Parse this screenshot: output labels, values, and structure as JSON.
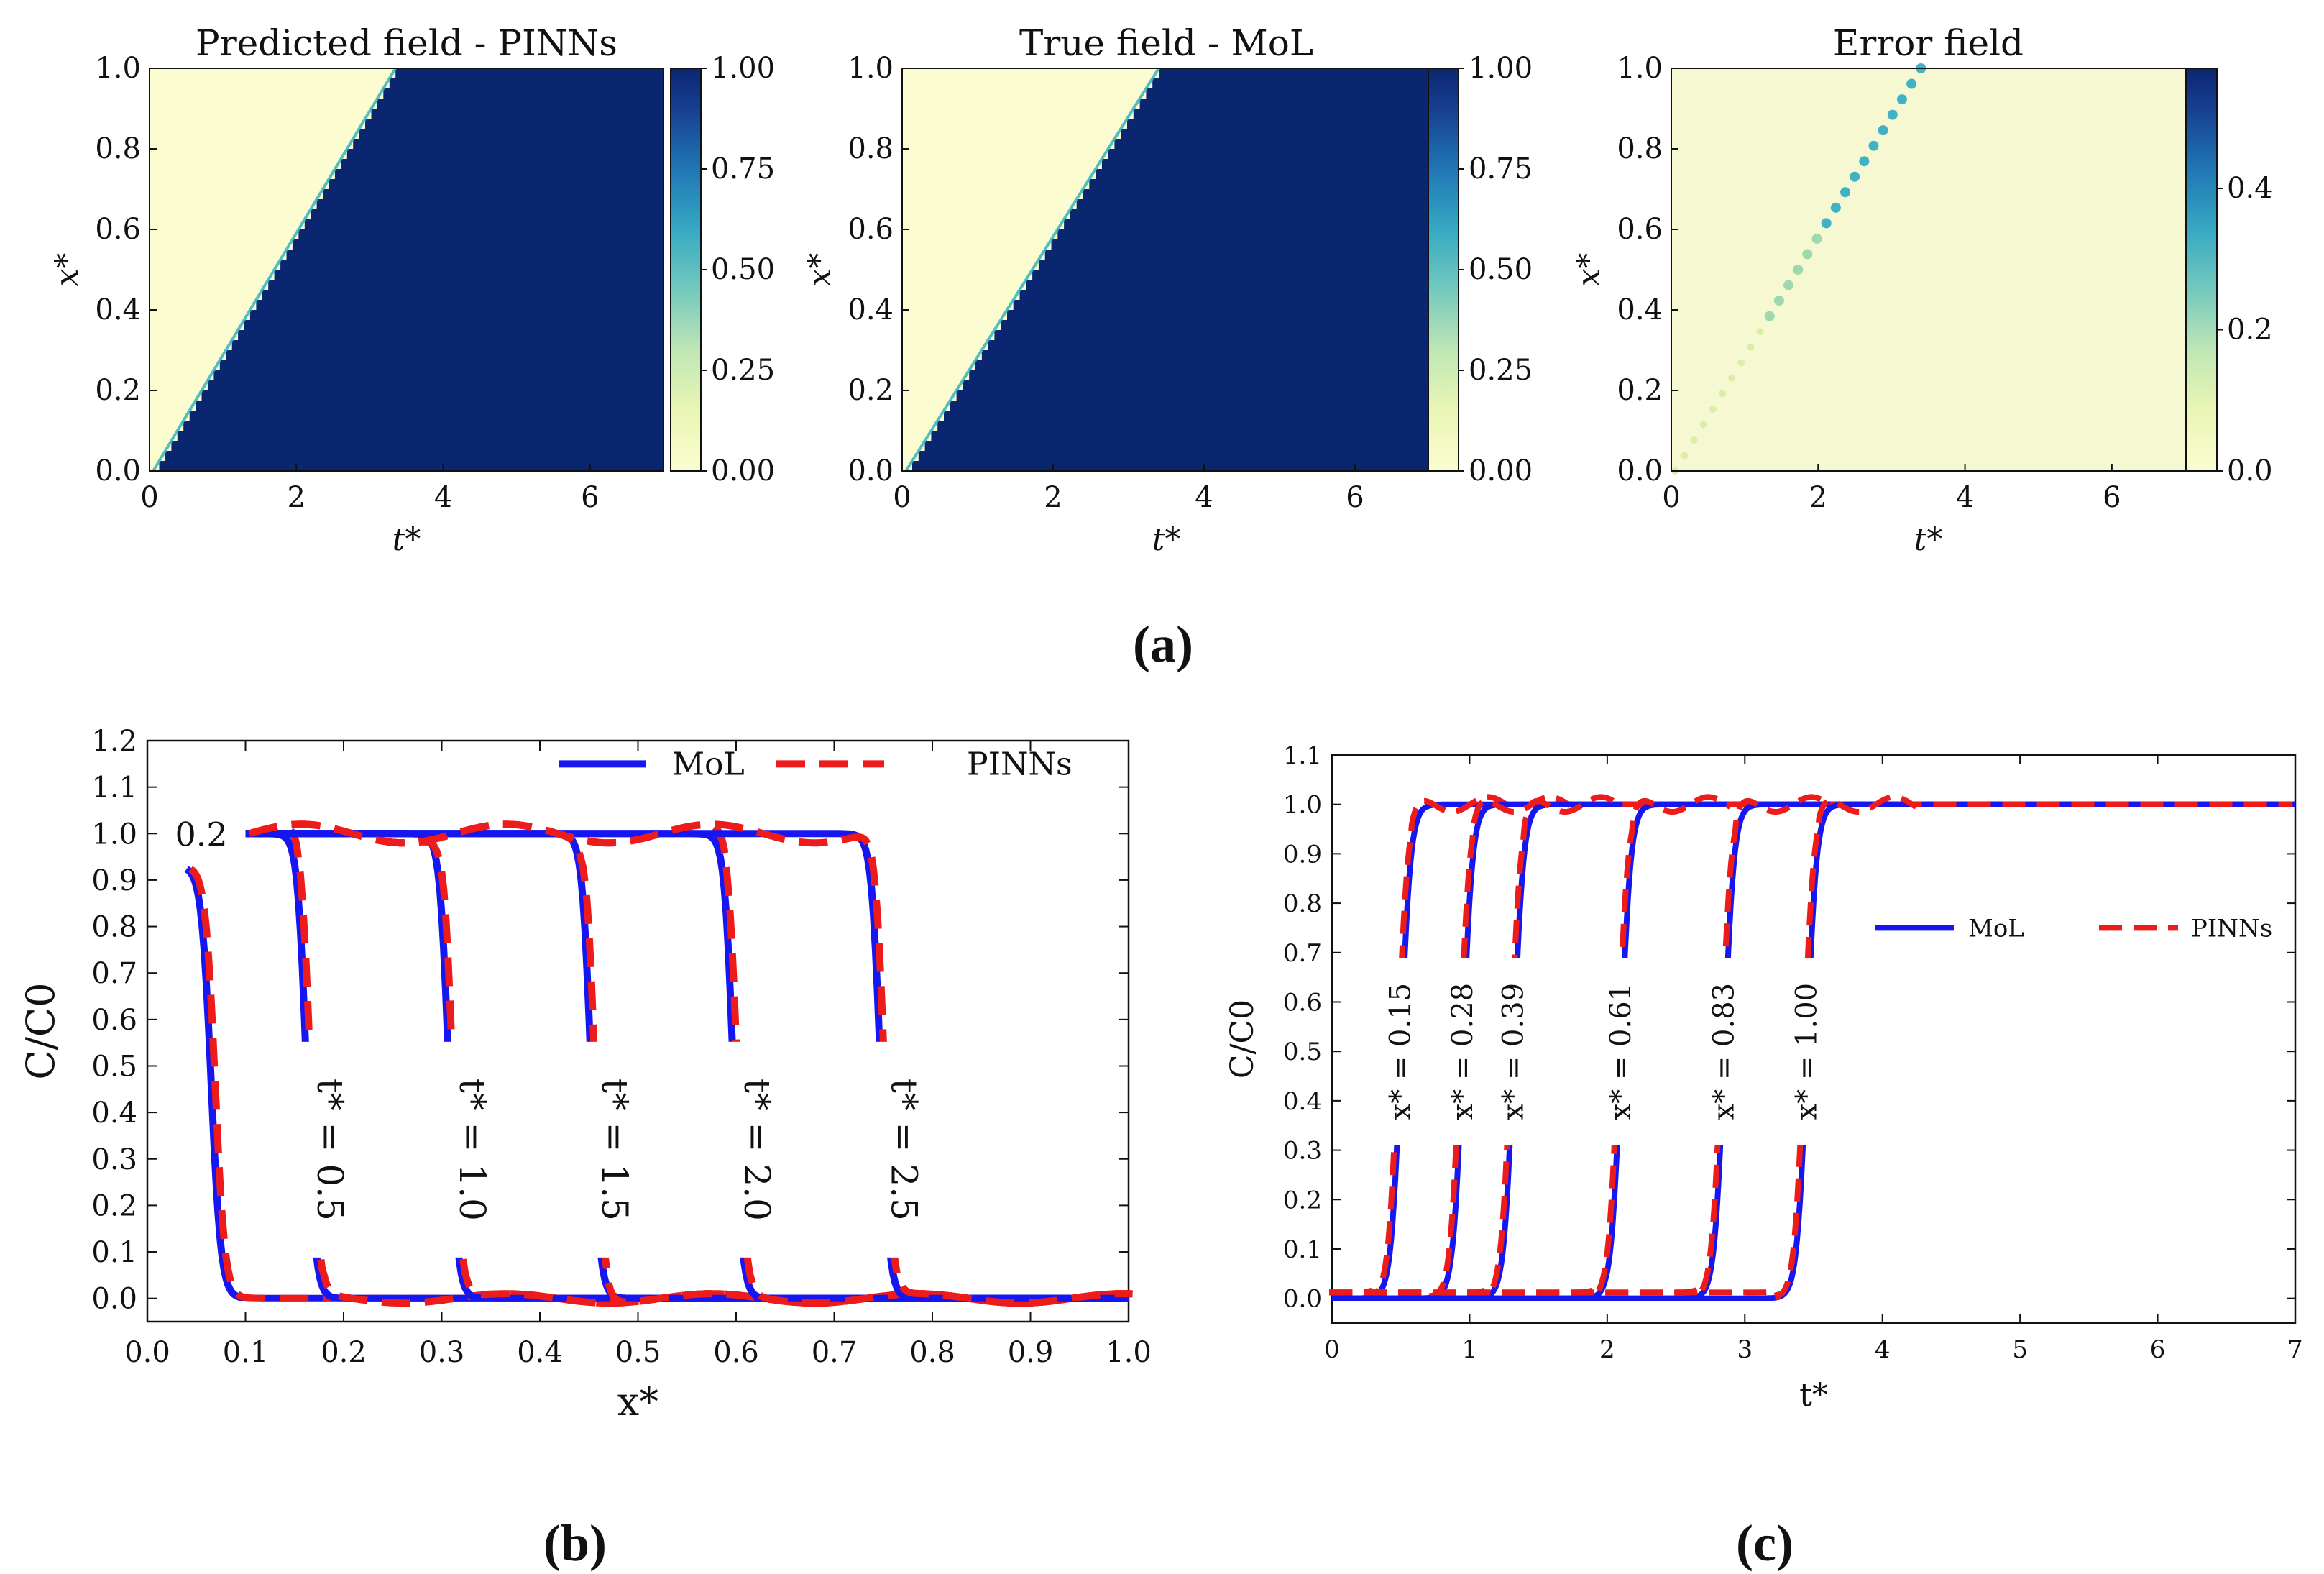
{
  "figure": {
    "panel_labels": [
      "(a)",
      "(b)",
      "(c)"
    ]
  },
  "colors": {
    "field_low": "#fbfdd1",
    "field_high": "#0b2670",
    "mol": "#1616f0",
    "pinns": "#ee1b1b",
    "front_mid": "#35b2c1"
  },
  "chart_data": [
    {
      "type": "heatmap",
      "id": "predicted",
      "title": "Predicted field - PINNs",
      "xlabel": "t*",
      "ylabel": "x*",
      "xlim": [
        0,
        7
      ],
      "ylim": [
        0,
        1
      ],
      "xticks": [
        0,
        2,
        4,
        6
      ],
      "yticks": [
        0.0,
        0.2,
        0.4,
        0.6,
        0.8,
        1.0
      ],
      "front": {
        "t_at_x0": 0.05,
        "t_at_x1": 3.35
      },
      "colorbar": {
        "range": [
          0,
          1.0
        ],
        "ticks": [
          "0.00",
          "0.25",
          "0.50",
          "0.75",
          "1.00"
        ],
        "tick_values": [
          0,
          0.25,
          0.5,
          0.75,
          1.0
        ]
      }
    },
    {
      "type": "heatmap",
      "id": "true",
      "title": "True field - MoL",
      "xlabel": "t*",
      "ylabel": "x*",
      "xlim": [
        0,
        7
      ],
      "ylim": [
        0,
        1
      ],
      "xticks": [
        0,
        2,
        4,
        6
      ],
      "yticks": [
        0.0,
        0.2,
        0.4,
        0.6,
        0.8,
        1.0
      ],
      "front": {
        "t_at_x0": 0.05,
        "t_at_x1": 3.4
      },
      "colorbar": {
        "range": [
          0,
          1.0
        ],
        "ticks": [
          "0.00",
          "0.25",
          "0.50",
          "0.75",
          "1.00"
        ],
        "tick_values": [
          0,
          0.25,
          0.5,
          0.75,
          1.0
        ]
      }
    },
    {
      "type": "heatmap",
      "id": "error",
      "title": "Error field",
      "xlabel": "t*",
      "ylabel": "x*",
      "xlim": [
        0,
        7
      ],
      "ylim": [
        0,
        1
      ],
      "xticks": [
        0,
        2,
        4,
        6
      ],
      "yticks": [
        0.0,
        0.2,
        0.4,
        0.6,
        0.8,
        1.0
      ],
      "front": {
        "t_at_x0": 0.05,
        "t_at_x1": 3.4
      },
      "colorbar": {
        "range": [
          0,
          0.57
        ],
        "ticks": [
          "0.0",
          "0.2",
          "0.4"
        ],
        "tick_values": [
          0,
          0.2,
          0.4
        ]
      }
    },
    {
      "type": "line",
      "id": "profiles_x",
      "xlabel": "x*",
      "ylabel": "C/C0",
      "xlim": [
        0,
        1.0
      ],
      "ylim": [
        -0.05,
        1.2
      ],
      "xticks": [
        "0.0",
        "0.1",
        "0.2",
        "0.3",
        "0.4",
        "0.5",
        "0.6",
        "0.7",
        "0.8",
        "0.9",
        "1.0"
      ],
      "yticks": [
        "0.0",
        "0.1",
        "0.2",
        "0.3",
        "0.4",
        "0.5",
        "0.6",
        "0.7",
        "0.8",
        "0.9",
        "1.0",
        "1.1",
        "1.2"
      ],
      "legend": [
        "MoL",
        "PINNs"
      ],
      "legend_position": "top-right",
      "series": [
        {
          "label": "0.2",
          "front_x": 0.055,
          "start_x": 0.04,
          "start_y": 0.93
        },
        {
          "label": "t* = 0.5",
          "front_x": 0.15
        },
        {
          "label": "t* = 1.0",
          "front_x": 0.295
        },
        {
          "label": "t* = 1.5",
          "front_x": 0.44
        },
        {
          "label": "t* = 2.0",
          "front_x": 0.585
        },
        {
          "label": "t* = 2.5",
          "front_x": 0.735
        }
      ]
    },
    {
      "type": "line",
      "id": "breakthrough_t",
      "xlabel": "t*",
      "ylabel": "C/C0",
      "xlim": [
        0,
        7
      ],
      "ylim": [
        -0.05,
        1.1
      ],
      "xticks": [
        "0",
        "1",
        "2",
        "3",
        "4",
        "5",
        "6",
        "7"
      ],
      "yticks": [
        "0.0",
        "0.1",
        "0.2",
        "0.3",
        "0.4",
        "0.5",
        "0.6",
        "0.7",
        "0.8",
        "0.9",
        "1.0",
        "1.1"
      ],
      "legend": [
        "MoL",
        "PINNs"
      ],
      "legend_position": "center-right",
      "series": [
        {
          "label": "x* = 0.15",
          "front_t": 0.5
        },
        {
          "label": "x* = 0.28",
          "front_t": 0.95
        },
        {
          "label": "x* = 0.39",
          "front_t": 1.32
        },
        {
          "label": "x* = 0.61",
          "front_t": 2.1
        },
        {
          "label": "x* = 0.83",
          "front_t": 2.85
        },
        {
          "label": "x* = 1.00",
          "front_t": 3.45
        }
      ]
    }
  ]
}
